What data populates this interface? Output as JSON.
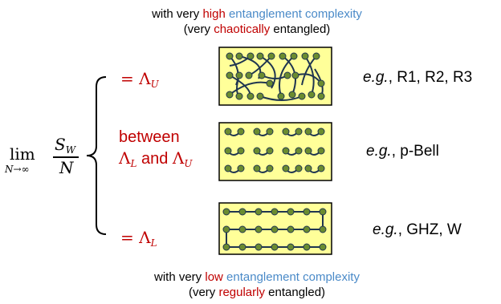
{
  "top_caption": {
    "prefix": "with very ",
    "highlight": "high",
    "middle": " ",
    "blue": "entanglement complexity",
    "line2_prefix": "(very ",
    "line2_highlight": "chaotically",
    "line2_suffix": " entangled)"
  },
  "bottom_caption": {
    "prefix": "with very ",
    "highlight": "low",
    "middle": " ",
    "blue": "entanglement complexity",
    "line2_prefix": "(very ",
    "line2_highlight": "regularly",
    "line2_suffix": " entangled)"
  },
  "formula": {
    "lim": "lim",
    "under": "N→∞",
    "numerator_main": "S",
    "numerator_sub": "W",
    "denominator": "N"
  },
  "cases": {
    "upper": {
      "eq": "= Λ",
      "sub": "U"
    },
    "middle": {
      "word1": "between",
      "l_main": "Λ",
      "l_sub": "L",
      "and": " and ",
      "u_main": "Λ",
      "u_sub": "U"
    },
    "lower": {
      "eq": "= Λ",
      "sub": "L"
    }
  },
  "examples": {
    "upper": {
      "eg": "e.g.",
      "rest": ", R1, R2, R3"
    },
    "middle": {
      "eg": "e.g.",
      "rest": ", p-Bell"
    },
    "lower": {
      "eg": "e.g.",
      "rest": ", GHZ, W"
    }
  },
  "colors": {
    "red": "#c00000",
    "blue": "#4a8ac8",
    "box_fill": "#ffff99",
    "node_fill": "#6b8c2f",
    "link": "#1f3550"
  }
}
